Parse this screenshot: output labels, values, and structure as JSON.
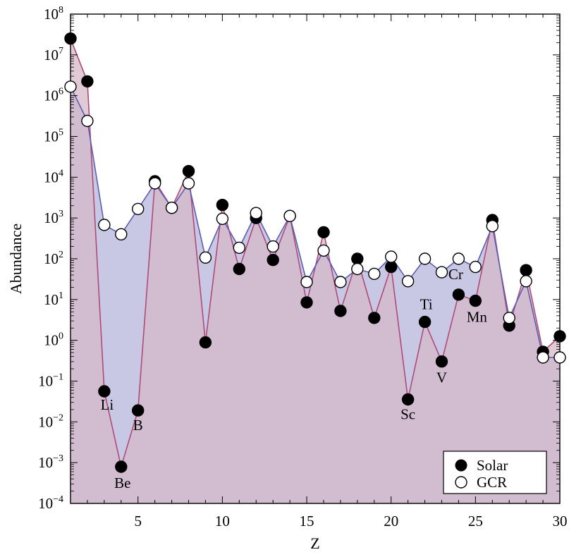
{
  "chart_data": {
    "type": "area",
    "xlabel": "Z",
    "ylabel": "Abundance",
    "xlim": [
      1,
      30
    ],
    "ylim_exp": [
      -4,
      8
    ],
    "y_scale": "log10",
    "x_ticks": [
      5,
      10,
      15,
      20,
      25,
      30
    ],
    "y_ticks_exp": [
      -4,
      -3,
      -2,
      -1,
      0,
      1,
      2,
      3,
      4,
      5,
      6,
      7,
      8
    ],
    "y_tick_base": "10",
    "legend_position": "bottom-right",
    "series": [
      {
        "name": "Solar",
        "marker": "filled-circle",
        "line_color": "#b04a78",
        "fill_color": "#d6b8c8",
        "x": [
          1,
          2,
          3,
          4,
          5,
          6,
          7,
          8,
          9,
          10,
          11,
          12,
          13,
          14,
          15,
          16,
          17,
          18,
          19,
          20,
          21,
          22,
          23,
          24,
          25,
          26,
          27,
          28,
          29,
          30
        ],
        "y_exp": [
          7.4,
          6.35,
          -1.25,
          -3.1,
          -1.72,
          3.9,
          3.25,
          4.15,
          -0.05,
          3.32,
          1.75,
          3.0,
          1.97,
          3.05,
          0.93,
          2.65,
          0.72,
          2.0,
          0.55,
          1.8,
          -1.45,
          0.45,
          -0.52,
          1.12,
          0.97,
          2.95,
          0.36,
          1.72,
          -0.28,
          0.1
        ]
      },
      {
        "name": "GCR",
        "marker": "open-circle",
        "line_color": "#5b5fb0",
        "fill_color": "#c8c8e4",
        "x": [
          1,
          2,
          3,
          4,
          5,
          6,
          7,
          8,
          9,
          10,
          11,
          12,
          13,
          14,
          15,
          16,
          17,
          18,
          19,
          20,
          21,
          22,
          23,
          24,
          25,
          26,
          27,
          28,
          29,
          30
        ],
        "y_exp": [
          6.22,
          5.38,
          2.83,
          2.6,
          3.22,
          3.85,
          3.25,
          3.85,
          2.03,
          2.98,
          2.27,
          3.12,
          2.3,
          3.05,
          1.43,
          2.2,
          1.43,
          1.75,
          1.63,
          2.05,
          1.45,
          2.0,
          1.67,
          2.0,
          1.8,
          2.8,
          0.55,
          1.45,
          -0.42,
          -0.42
        ]
      }
    ],
    "annotations": [
      {
        "text": "Li",
        "z": 3
      },
      {
        "text": "Be",
        "z": 4
      },
      {
        "text": "B",
        "z": 5
      },
      {
        "text": "Sc",
        "z": 21
      },
      {
        "text": "Ti",
        "z": 22
      },
      {
        "text": "V",
        "z": 23
      },
      {
        "text": "Cr",
        "z": 24
      },
      {
        "text": "Mn",
        "z": 25
      }
    ]
  }
}
